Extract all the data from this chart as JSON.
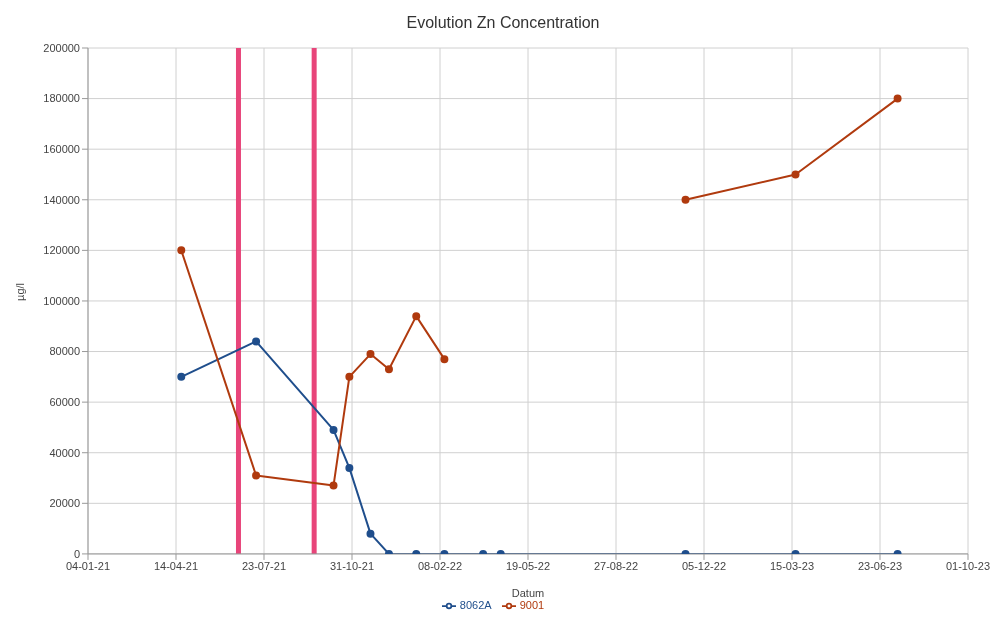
{
  "chart_data": {
    "type": "line",
    "title": "Evolution Zn Concentration",
    "xlabel": "Datum",
    "ylabel": "µg/l",
    "x": [
      "2021-04-20",
      "2021-07-14",
      "2021-10-10",
      "2021-10-28",
      "2021-11-21",
      "2021-12-12",
      "2022-01-12",
      "2022-02-13",
      "2022-03-29",
      "2022-04-18",
      "2022-11-14",
      "2023-03-19",
      "2023-07-13"
    ],
    "series": [
      {
        "name": "8062A",
        "color": "#1f4e8c",
        "values": [
          70000,
          84000,
          49000,
          34000,
          8000,
          0,
          0,
          0,
          0,
          0,
          0,
          0,
          0
        ]
      },
      {
        "name": "9001",
        "color": "#b03a0e",
        "values": [
          120000,
          31000,
          27000,
          70000,
          79000,
          73000,
          94000,
          77000,
          null,
          null,
          140000,
          150000,
          180000
        ]
      }
    ],
    "xlim": [
      "2021-01-04",
      "2023-10-01"
    ],
    "xticks": [
      {
        "value": "2021-01-04",
        "label": "04-01-21"
      },
      {
        "value": "2021-04-14",
        "label": "14-04-21"
      },
      {
        "value": "2021-07-23",
        "label": "23-07-21"
      },
      {
        "value": "2021-10-31",
        "label": "31-10-21"
      },
      {
        "value": "2022-02-08",
        "label": "08-02-22"
      },
      {
        "value": "2022-05-19",
        "label": "19-05-22"
      },
      {
        "value": "2022-08-27",
        "label": "27-08-22"
      },
      {
        "value": "2022-12-05",
        "label": "05-12-22"
      },
      {
        "value": "2023-03-15",
        "label": "15-03-23"
      },
      {
        "value": "2023-06-23",
        "label": "23-06-23"
      },
      {
        "value": "2023-10-01",
        "label": "01-10-23"
      }
    ],
    "ylim": [
      0,
      200000
    ],
    "yticks": [
      0,
      20000,
      40000,
      60000,
      80000,
      100000,
      120000,
      140000,
      160000,
      180000,
      200000
    ],
    "ref_lines": [
      {
        "axis": "x",
        "value": "2021-06-24",
        "color": "#e8457a"
      },
      {
        "axis": "x",
        "value": "2021-09-18",
        "color": "#e8457a"
      }
    ],
    "grid": true,
    "legend": "bottom",
    "marker": "circle",
    "line_style": "solid"
  }
}
